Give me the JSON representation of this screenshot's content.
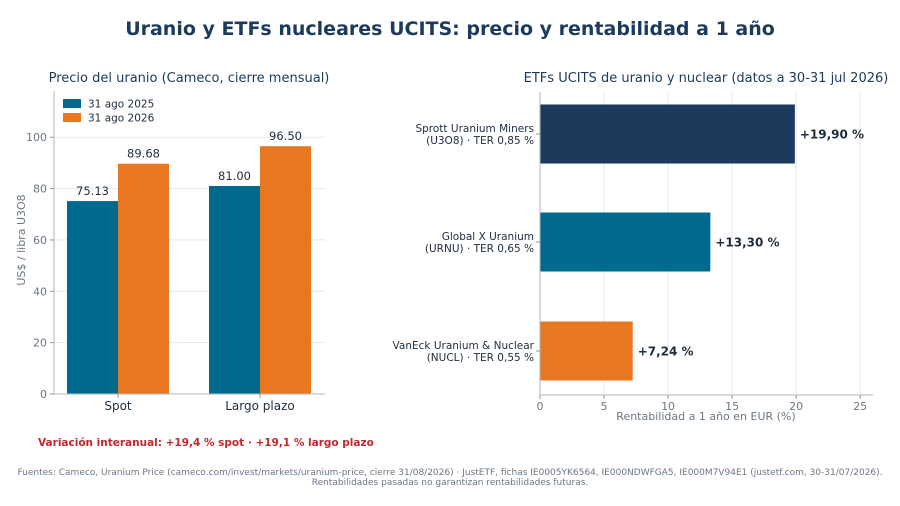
{
  "title": "Uranio y ETFs nucleares UCITS: precio y rentabilidad a 1 año",
  "note": "Variación interanual: +19,4 % spot · +19,1 % largo plazo",
  "sources": "Fuentes: Cameco, Uranium Price (cameco.com/invest/markets/uranium-price, cierre 31/08/2026) · JustETF, fichas IE0005YK6564, IE000NDWFGA5, IE000M7V94E1 (justetf.com, 30-31/07/2026). Rentabilidades pasadas no garantizan rentabilidades futuras.",
  "chart_data": [
    {
      "type": "bar",
      "title": "Precio del uranio (Cameco, cierre mensual)",
      "ylabel": "US$ / libra U3O8",
      "categories": [
        "Spot",
        "Largo plazo"
      ],
      "series": [
        {
          "name": "31 ago 2025",
          "values": [
            75.13,
            81.0
          ],
          "labels": [
            "75.13",
            "81.00"
          ],
          "color": "#006a8e"
        },
        {
          "name": "31 ago 2026",
          "values": [
            89.68,
            96.5
          ],
          "labels": [
            "89.68",
            "96.50"
          ],
          "color": "#e87722"
        }
      ],
      "ylim": [
        0,
        118
      ],
      "yticks": [
        0,
        20,
        40,
        60,
        80,
        100
      ],
      "grid": true,
      "legend": "top-left"
    },
    {
      "type": "bar",
      "orientation": "horizontal",
      "title": "ETFs UCITS de uranio y nuclear (datos a 30-31 jul 2026)",
      "xlabel": "Rentabilidad a 1 año en EUR (%)",
      "categories": [
        [
          "Sprott Uranium Miners",
          "(U3O8) · TER 0,85 %"
        ],
        [
          "Global X Uranium",
          "(URNU) · TER 0,65 %"
        ],
        [
          "VanEck Uranium & Nuclear",
          "(NUCL) · TER 0,55 %"
        ]
      ],
      "values": [
        19.9,
        13.3,
        7.24
      ],
      "labels": [
        "+19,90 %",
        "+13,30 %",
        "+7,24 %"
      ],
      "colors": [
        "#1b3a5c",
        "#006a8e",
        "#e87722"
      ],
      "xlim": [
        0,
        26
      ],
      "xticks": [
        0,
        5,
        10,
        15,
        20,
        25
      ],
      "grid": true
    }
  ]
}
